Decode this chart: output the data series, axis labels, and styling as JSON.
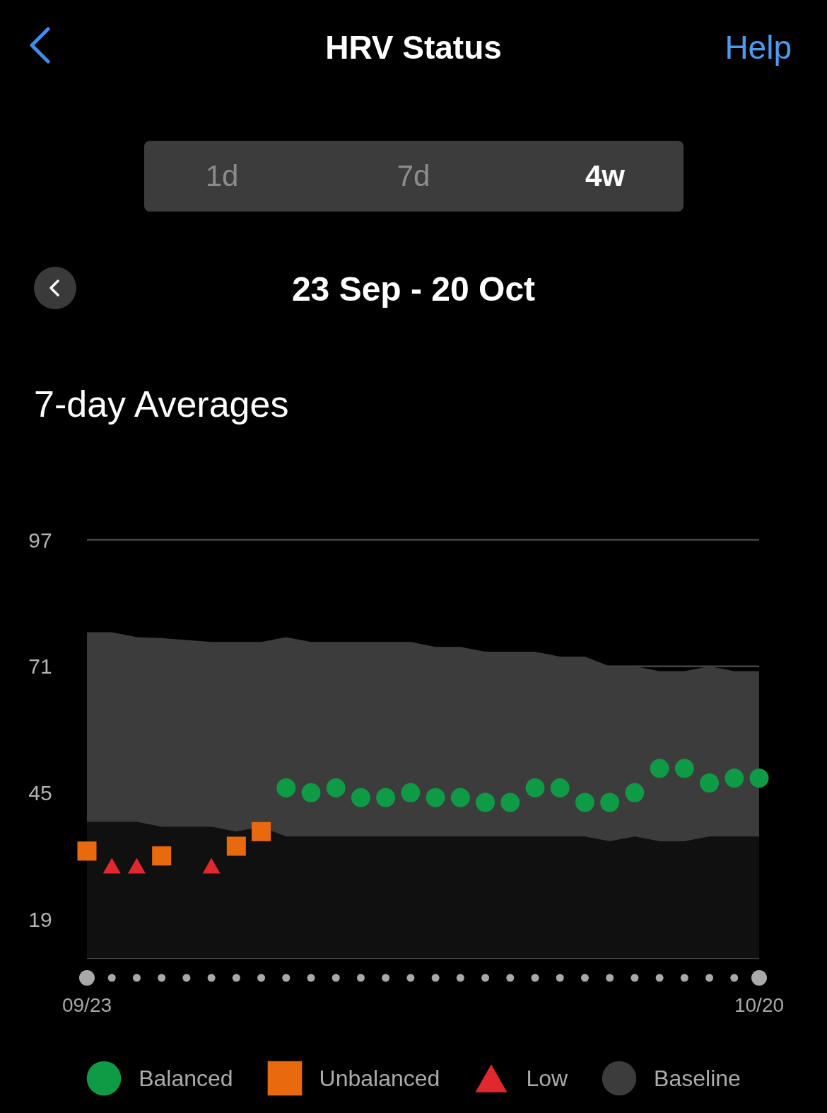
{
  "chart_data": {
    "type": "scatter",
    "title": "HRV Status",
    "subtitle": "7-day Averages",
    "annotations": [
      "Help",
      "1d",
      "7d",
      "4w",
      "23 Sep - 20 Oct"
    ],
    "categories": [
      "09/23",
      null,
      null,
      null,
      null,
      null,
      null,
      null,
      null,
      null,
      null,
      null,
      null,
      null,
      null,
      null,
      null,
      null,
      null,
      null,
      null,
      null,
      null,
      null,
      null,
      null,
      null,
      "10/20"
    ],
    "series": [
      {
        "type": "area",
        "color": "#101010",
        "values": [
          39,
          39,
          39,
          38,
          38,
          38,
          37,
          38,
          36,
          36,
          36,
          36,
          36,
          36,
          36,
          36,
          36,
          36,
          36,
          36,
          36,
          35,
          36,
          35,
          35,
          36,
          36,
          36
        ]
      },
      {
        "name": "Balanced",
        "marker": "circle",
        "color": "#0f9a45",
        "values": [
          null,
          null,
          null,
          null,
          null,
          null,
          null,
          null,
          46,
          45,
          46,
          44,
          44,
          45,
          44,
          44,
          43,
          43,
          46,
          46,
          43,
          43,
          45,
          50,
          50,
          47,
          48,
          48
        ]
      },
      {
        "name": "Unbalanced",
        "marker": "square",
        "color": "#e9690f",
        "values": [
          33,
          null,
          null,
          32,
          null,
          null,
          34,
          37,
          null,
          null,
          null,
          null,
          null,
          null,
          null,
          null,
          null,
          null,
          null,
          null,
          null,
          null,
          null,
          null,
          null,
          null,
          null,
          null
        ]
      },
      {
        "name": "Low",
        "marker": "triangle",
        "color": "#e0282e",
        "values": [
          null,
          30,
          30,
          null,
          null,
          30,
          null,
          null,
          null,
          null,
          null,
          null,
          null,
          null,
          null,
          null,
          null,
          null,
          null,
          null,
          null,
          null,
          null,
          null,
          null,
          null,
          null,
          null
        ]
      },
      {
        "name": "Baseline",
        "type": "area",
        "color": "#3c3c3c",
        "values": [
          39,
          39,
          38,
          38.8,
          38.4,
          38,
          39,
          38,
          41,
          40,
          40,
          40,
          40,
          40,
          39,
          39,
          38,
          38,
          38,
          37,
          37,
          36,
          35,
          35,
          35,
          35,
          34,
          34
        ]
      }
    ],
    "stacked": true,
    "ylim": [
      11,
      97
    ],
    "yticks": [
      19,
      45,
      71,
      97
    ],
    "grid": "y",
    "legend": "bottom"
  }
}
